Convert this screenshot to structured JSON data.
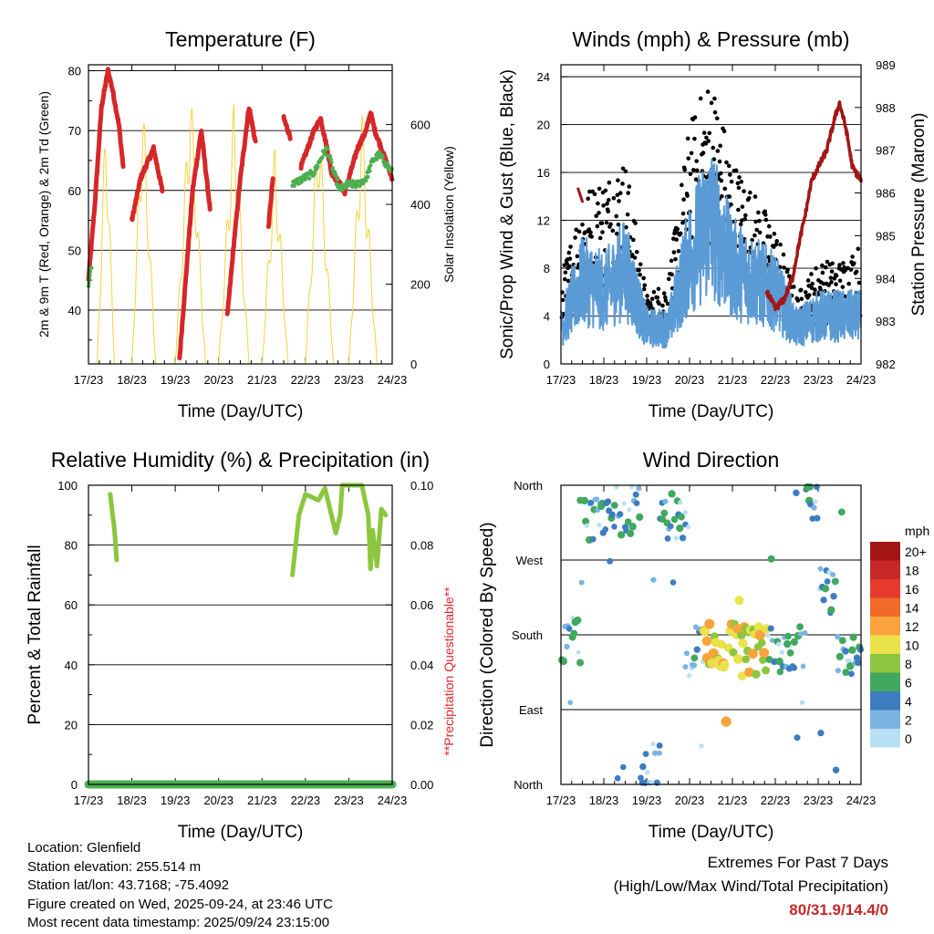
{
  "chart_data": [
    {
      "type": "line",
      "title": "Temperature (F)",
      "xlabel": "Time (Day/UTC)",
      "ylabel": "2m & 9m T (Red, Orange) & 2m Td (Green)",
      "y2label": "Solar Insolation (Yellow)",
      "x_ticks": [
        "17/23",
        "18/23",
        "19/23",
        "20/23",
        "21/23",
        "22/23",
        "23/23",
        "24/23"
      ],
      "xlim": [
        0,
        7
      ],
      "ylim": [
        31,
        81
      ],
      "y_ticks": [
        40,
        50,
        60,
        70,
        80
      ],
      "y2lim": [
        0,
        750
      ],
      "y2_ticks": [
        0,
        200,
        400,
        600
      ],
      "hlines": [
        80
      ],
      "series": [
        {
          "name": "2m T",
          "color": "#d62728",
          "points": [
            [
              0.0,
              45
            ],
            [
              0.15,
              58
            ],
            [
              0.3,
              74
            ],
            [
              0.45,
              80
            ],
            [
              0.55,
              77
            ],
            [
              0.7,
              71
            ],
            [
              0.8,
              64
            ],
            [
              1.0,
              55
            ],
            [
              1.2,
              62
            ],
            [
              1.5,
              67
            ],
            [
              1.7,
              60
            ],
            [
              2.1,
              32
            ],
            [
              2.25,
              46
            ],
            [
              2.4,
              60
            ],
            [
              2.6,
              70
            ],
            [
              2.8,
              57
            ],
            [
              3.2,
              39
            ],
            [
              3.35,
              51
            ],
            [
              3.5,
              62
            ],
            [
              3.7,
              74
            ],
            [
              3.85,
              68
            ],
            [
              4.15,
              54
            ],
            [
              4.25,
              62
            ],
            [
              4.5,
              72
            ],
            [
              4.65,
              69
            ],
            [
              4.9,
              64
            ],
            [
              5.2,
              70
            ],
            [
              5.35,
              72
            ],
            [
              5.5,
              67
            ],
            [
              5.6,
              63
            ],
            [
              5.8,
              61
            ],
            [
              5.9,
              59.5
            ],
            [
              6.0,
              62
            ],
            [
              6.2,
              67
            ],
            [
              6.4,
              70
            ],
            [
              6.5,
              73
            ],
            [
              6.6,
              70
            ],
            [
              6.7,
              68
            ],
            [
              6.8,
              66
            ],
            [
              7.0,
              62
            ]
          ]
        },
        {
          "name": "2m Td",
          "color": "#4caf50",
          "points": [
            [
              0.0,
              44
            ],
            [
              0.05,
              47
            ],
            [
              4.7,
              61
            ],
            [
              4.95,
              62
            ],
            [
              5.2,
              63
            ],
            [
              5.4,
              66
            ],
            [
              5.5,
              67
            ],
            [
              5.65,
              63
            ],
            [
              5.8,
              60
            ],
            [
              5.95,
              61
            ],
            [
              6.2,
              61
            ],
            [
              6.4,
              62
            ],
            [
              6.55,
              65
            ],
            [
              6.7,
              66
            ],
            [
              6.8,
              65
            ],
            [
              7.0,
              63
            ]
          ]
        },
        {
          "name": "Solar Insolation",
          "color": "#f5d33b",
          "axis": "y2",
          "points": [
            [
              0.0,
              0
            ],
            [
              0.2,
              0
            ],
            [
              0.4,
              650
            ],
            [
              0.6,
              0
            ],
            [
              1.0,
              0
            ],
            [
              1.25,
              690
            ],
            [
              1.55,
              0
            ],
            [
              2.0,
              0
            ],
            [
              2.35,
              720
            ],
            [
              2.7,
              0
            ],
            [
              3.0,
              0
            ],
            [
              3.35,
              660
            ],
            [
              3.7,
              0
            ],
            [
              4.0,
              0
            ],
            [
              4.3,
              560
            ],
            [
              4.6,
              0
            ],
            [
              5.0,
              0
            ],
            [
              5.3,
              640
            ],
            [
              5.65,
              0
            ],
            [
              6.0,
              0
            ],
            [
              6.3,
              650
            ],
            [
              6.65,
              0
            ],
            [
              7.0,
              0
            ]
          ]
        }
      ]
    },
    {
      "type": "scatter",
      "title": "Winds (mph) & Pressure (mb)",
      "xlabel": "Time (Day/UTC)",
      "ylabel": "Sonic/Prop Wind & Gust (Blue, Black)",
      "y2label": "Station Pressure (Maroon)",
      "x_ticks": [
        "17/23",
        "18/23",
        "19/23",
        "20/23",
        "21/23",
        "22/23",
        "23/23",
        "24/23"
      ],
      "xlim": [
        0,
        7
      ],
      "ylim": [
        0,
        25
      ],
      "y_ticks": [
        0,
        4,
        8,
        12,
        16,
        20,
        24
      ],
      "y2lim": [
        982,
        989
      ],
      "y2_ticks": [
        982,
        983,
        984,
        985,
        986,
        987,
        988,
        989
      ],
      "hlines": [
        24
      ],
      "wind_sustained_mean": [
        [
          0.0,
          3
        ],
        [
          0.5,
          7
        ],
        [
          1.0,
          6
        ],
        [
          1.5,
          8
        ],
        [
          2.0,
          3
        ],
        [
          2.5,
          3
        ],
        [
          3.0,
          9
        ],
        [
          3.5,
          12
        ],
        [
          4.0,
          8
        ],
        [
          4.5,
          7
        ],
        [
          5.0,
          6
        ],
        [
          5.5,
          3
        ],
        [
          6.0,
          4
        ],
        [
          6.5,
          4
        ],
        [
          7.0,
          4
        ]
      ],
      "wind_gust_mean": [
        [
          0.0,
          5
        ],
        [
          0.5,
          10
        ],
        [
          1.0,
          11
        ],
        [
          1.5,
          12
        ],
        [
          2.0,
          4
        ],
        [
          2.5,
          5
        ],
        [
          3.0,
          14
        ],
        [
          3.5,
          17
        ],
        [
          4.0,
          12
        ],
        [
          4.5,
          10
        ],
        [
          5.0,
          8
        ],
        [
          5.5,
          4
        ],
        [
          6.0,
          6
        ],
        [
          6.5,
          6
        ],
        [
          7.0,
          7
        ]
      ],
      "pressure": [
        [
          0.4,
          986.1
        ],
        [
          0.5,
          985.8
        ],
        [
          4.8,
          983.7
        ],
        [
          5.0,
          983.3
        ],
        [
          5.2,
          983.5
        ],
        [
          5.4,
          984.0
        ],
        [
          5.55,
          984.8
        ],
        [
          5.7,
          985.5
        ],
        [
          5.85,
          986.3
        ],
        [
          6.0,
          986.6
        ],
        [
          6.2,
          987.0
        ],
        [
          6.4,
          987.8
        ],
        [
          6.5,
          988.1
        ],
        [
          6.65,
          987.5
        ],
        [
          6.8,
          986.6
        ],
        [
          7.0,
          986.3
        ]
      ],
      "series_colors": {
        "sustained": "#5b9bd5",
        "gust": "#000000",
        "pressure": "#a31515"
      }
    },
    {
      "type": "line",
      "title": "Relative Humidity (%) & Precipitation (in)",
      "xlabel": "Time (Day/UTC)",
      "ylabel": "Percent & Total Rainfall",
      "y2label": "**Precipitation Questionable**",
      "x_ticks": [
        "17/23",
        "18/23",
        "19/23",
        "20/23",
        "21/23",
        "22/23",
        "23/23",
        "24/23"
      ],
      "xlim": [
        0,
        7
      ],
      "ylim": [
        0,
        100
      ],
      "y_ticks": [
        0,
        20,
        40,
        60,
        80,
        100
      ],
      "y2lim": [
        0,
        0.1
      ],
      "y2_ticks": [
        "0.00",
        "0.02",
        "0.04",
        "0.06",
        "0.08",
        "0.10"
      ],
      "series": [
        {
          "name": "Relative Humidity",
          "color": "#8cc63f",
          "segments": [
            [
              [
                0.5,
                97
              ],
              [
                0.6,
                85
              ],
              [
                0.65,
                75
              ]
            ],
            [
              [
                4.7,
                70
              ],
              [
                4.85,
                90
              ],
              [
                5.0,
                97
              ],
              [
                5.3,
                95
              ],
              [
                5.45,
                99
              ],
              [
                5.6,
                90
              ],
              [
                5.7,
                84
              ],
              [
                5.8,
                90
              ],
              [
                5.85,
                100
              ],
              [
                6.3,
                100
              ],
              [
                6.45,
                90
              ],
              [
                6.5,
                72
              ],
              [
                6.55,
                85
              ],
              [
                6.65,
                73
              ],
              [
                6.75,
                92
              ],
              [
                6.85,
                90
              ]
            ]
          ]
        },
        {
          "name": "Precipitation",
          "color": "#4caf50",
          "points": [
            [
              0,
              0
            ],
            [
              7,
              0
            ]
          ]
        }
      ]
    },
    {
      "type": "scatter",
      "title": "Wind Direction",
      "xlabel": "Time (Day/UTC)",
      "ylabel": "Direction (Colored By Speed)",
      "x_ticks": [
        "17/23",
        "18/23",
        "19/23",
        "20/23",
        "21/23",
        "22/23",
        "23/23",
        "24/23"
      ],
      "xlim": [
        0,
        7
      ],
      "ylim": [
        0,
        360
      ],
      "y_tick_labels": [
        "North",
        "East",
        "South",
        "West",
        "North"
      ],
      "direction_bands": [
        [
          0.0,
          0.45,
          175
        ],
        [
          0.45,
          0.95,
          315
        ],
        [
          0.95,
          1.85,
          330
        ],
        [
          1.85,
          2.3,
          20
        ],
        [
          2.3,
          2.9,
          325
        ],
        [
          2.9,
          3.4,
          160
        ],
        [
          3.4,
          4.3,
          165
        ],
        [
          4.3,
          4.9,
          160
        ],
        [
          4.9,
          5.7,
          160
        ],
        [
          5.7,
          6.0,
          340
        ],
        [
          6.0,
          6.4,
          230
        ],
        [
          6.4,
          7.0,
          160
        ]
      ],
      "colorbar": {
        "label": "mph",
        "levels": [
          "20+",
          "18",
          "16",
          "14",
          "12",
          "10",
          "8",
          "6",
          "4",
          "2",
          "0"
        ],
        "colors": [
          "#a31515",
          "#c62828",
          "#e53b2c",
          "#f06a2a",
          "#f9a33c",
          "#e9e24a",
          "#8cc63f",
          "#41a85f",
          "#3e7cc0",
          "#7bb4e3",
          "#b8e0f5"
        ]
      }
    }
  ],
  "station": {
    "location": "Location: Glenfield",
    "elevation": "Station elevation: 255.514 m",
    "latlon": "Station lat/lon: 43.7168; -75.4092",
    "created": "Figure created on Wed, 2025-09-24, at 23:46 UTC",
    "recent": "Most recent data timestamp: 2025/09/24 23:15:00"
  },
  "extremes": {
    "title": "Extremes For Past 7 Days",
    "subtitle": "(High/Low/Max Wind/Total Precipitation)",
    "values": "80/31.9/14.4/0"
  }
}
